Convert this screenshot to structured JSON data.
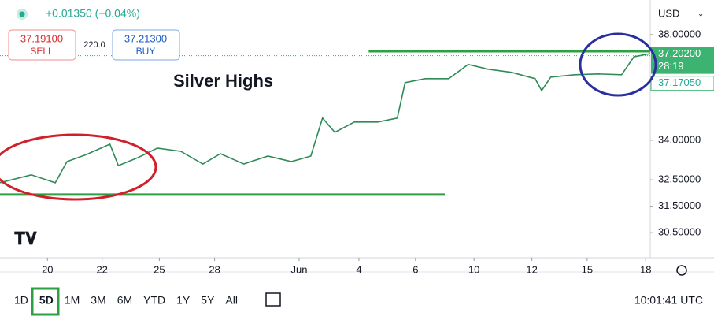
{
  "header": {
    "change": "+0.01350 (+0.04%)",
    "currency": "USD",
    "sell": {
      "price": "37.19100",
      "label": "SELL"
    },
    "spread": "220.0",
    "buy": {
      "price": "37.21300",
      "label": "BUY"
    }
  },
  "toolbar": {
    "ranges": [
      "1D",
      "5D",
      "1M",
      "3M",
      "6M",
      "YTD",
      "1Y",
      "5Y",
      "All"
    ],
    "active": 1,
    "clock": "10:01:41 UTC"
  },
  "chart_data": {
    "type": "line",
    "annotation": "Silver Highs",
    "xlim": [
      0,
      100
    ],
    "ylim": [
      29.55,
      39.31
    ],
    "xticks": [
      {
        "value": 7.3,
        "label": "20"
      },
      {
        "value": 15.7,
        "label": "22"
      },
      {
        "value": 24.5,
        "label": "25"
      },
      {
        "value": 33,
        "label": "28"
      },
      {
        "value": 46,
        "label": "Jun"
      },
      {
        "value": 55.2,
        "label": "4"
      },
      {
        "value": 63.9,
        "label": "6"
      },
      {
        "value": 72.9,
        "label": "10"
      },
      {
        "value": 81.8,
        "label": "12"
      },
      {
        "value": 90.3,
        "label": "15"
      },
      {
        "value": 99.3,
        "label": "18"
      }
    ],
    "yticks": [
      {
        "value": 38,
        "label": "38.00000"
      },
      {
        "value": 34,
        "label": "34.00000"
      },
      {
        "value": 32.5,
        "label": "32.50000"
      },
      {
        "value": 31.5,
        "label": "31.50000"
      },
      {
        "value": 30.5,
        "label": "30.50000"
      }
    ],
    "series": [
      {
        "color": "#2e8b57",
        "x": [
          0,
          4.8,
          8.5,
          10.3,
          13.3,
          16.9,
          18.2,
          21.2,
          24.2,
          27.8,
          31.2,
          33.9,
          37.5,
          41.2,
          44.8,
          47.8,
          49.6,
          51.5,
          54.5,
          58.1,
          61.1,
          62.3,
          65.4,
          69,
          72,
          75.1,
          78.7,
          82.3,
          83.3,
          84.7,
          88.4,
          92,
          95.6,
          97.5,
          100
        ],
        "values": [
          32.39,
          32.69,
          32.39,
          33.19,
          33.46,
          33.85,
          33.04,
          33.34,
          33.7,
          33.58,
          33.1,
          33.49,
          33.1,
          33.4,
          33.19,
          33.4,
          34.84,
          34.3,
          34.69,
          34.69,
          34.84,
          36.18,
          36.33,
          36.33,
          36.87,
          36.69,
          36.57,
          36.33,
          35.88,
          36.39,
          36.48,
          36.51,
          36.48,
          37.16,
          37.28
        ]
      }
    ],
    "levels": [
      {
        "value": 37.37,
        "x": [
          56.7,
          100
        ],
        "color": "#2ea043"
      },
      {
        "value": 31.94,
        "x": [
          0,
          68.4
        ],
        "color": "#2ea043"
      }
    ],
    "last_price": {
      "value": 37.202,
      "label": "37.20200",
      "countdown": "28:19"
    },
    "bid_price": {
      "value": 37.1705,
      "label": "37.17050"
    }
  }
}
